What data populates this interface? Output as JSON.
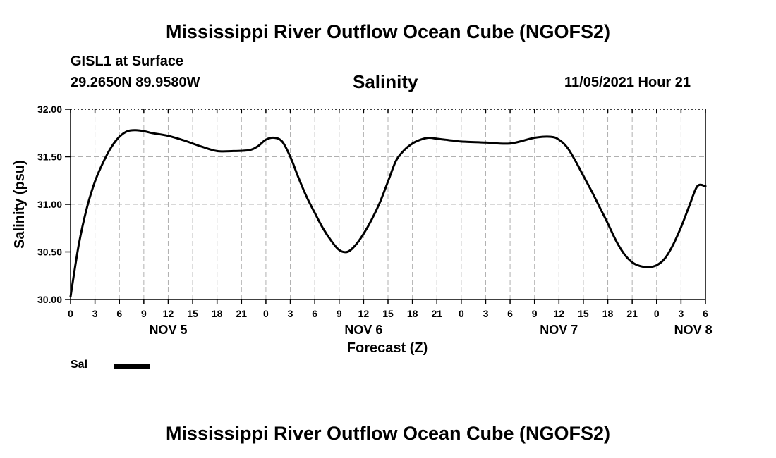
{
  "header": {
    "title": "Mississippi River Outflow Ocean Cube (NGOFS2)",
    "station": "GISL1 at Surface",
    "coords": "29.2650N  89.9580W",
    "date": "11/05/2021 Hour 21"
  },
  "footer": {
    "title": "Mississippi River Outflow Ocean Cube (NGOFS2)"
  },
  "legend": {
    "label": "Sal",
    "color": "#000000"
  },
  "chart_data": {
    "type": "line",
    "title": "Salinity",
    "xlabel": "Forecast (Z)",
    "ylabel": "Salinity (psu)",
    "ylim": [
      30.0,
      32.0
    ],
    "xlim_hours": [
      0,
      78
    ],
    "y_ticks": [
      "30.00",
      "30.50",
      "31.00",
      "31.50",
      "32.00"
    ],
    "x_tick_labels": [
      "0",
      "3",
      "6",
      "9",
      "12",
      "15",
      "18",
      "21",
      "0",
      "3",
      "6",
      "9",
      "12",
      "15",
      "18",
      "21",
      "0",
      "3",
      "6",
      "9",
      "12",
      "15",
      "18",
      "21",
      "0",
      "3",
      "6"
    ],
    "day_labels": [
      {
        "label": "NOV 5",
        "hour": 12
      },
      {
        "label": "NOV 6",
        "hour": 36
      },
      {
        "label": "NOV 7",
        "hour": 60
      },
      {
        "label": "NOV 8",
        "hour": 76.5
      }
    ],
    "grid": true,
    "series": [
      {
        "name": "Sal",
        "x": [
          0,
          1,
          2,
          3,
          4,
          5,
          6,
          7,
          8,
          9,
          10,
          12,
          14,
          16,
          18,
          20,
          22,
          23,
          24,
          25,
          26,
          27,
          28,
          29,
          30,
          31,
          32,
          33,
          34,
          35,
          36,
          37,
          38,
          39,
          40,
          41,
          42,
          43,
          44,
          45,
          46,
          47,
          48,
          51,
          54,
          57,
          59,
          60,
          61,
          62,
          63,
          64,
          65,
          66,
          67,
          68,
          69,
          70,
          71,
          72,
          73,
          74,
          75,
          76,
          77,
          78
        ],
        "values": [
          30.03,
          30.57,
          30.96,
          31.24,
          31.44,
          31.6,
          31.71,
          31.77,
          31.78,
          31.77,
          31.75,
          31.72,
          31.67,
          31.61,
          31.56,
          31.56,
          31.57,
          31.61,
          31.68,
          31.7,
          31.66,
          31.5,
          31.28,
          31.08,
          30.91,
          30.75,
          30.62,
          30.52,
          30.5,
          30.57,
          30.69,
          30.84,
          31.02,
          31.24,
          31.46,
          31.57,
          31.64,
          31.68,
          31.7,
          31.69,
          31.68,
          31.67,
          31.66,
          31.65,
          31.64,
          31.7,
          31.71,
          31.68,
          31.6,
          31.46,
          31.3,
          31.14,
          30.97,
          30.8,
          30.62,
          30.48,
          30.39,
          30.35,
          30.34,
          30.36,
          30.43,
          30.57,
          30.76,
          30.98,
          31.19,
          31.19
        ]
      }
    ]
  }
}
